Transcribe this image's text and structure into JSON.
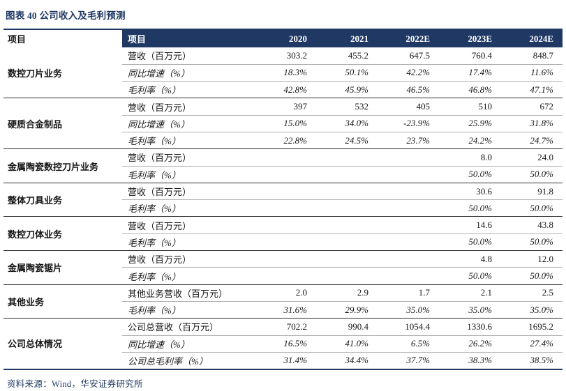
{
  "title": "图表 40 公司收入及毛利预测",
  "source": "资料来源：Wind，华安证券研究所",
  "colors": {
    "navy": "#1f3864",
    "group_rule": "#2e2e2e",
    "inner_rule": "#b0b0b0"
  },
  "chart_data": {
    "type": "table",
    "title": "图表 40 公司收入及毛利预测",
    "columns": [
      "项目",
      "项目",
      "2020",
      "2021",
      "2022E",
      "2023E",
      "2024E"
    ],
    "groups": [
      {
        "name": "数控刀片业务",
        "rows": [
          {
            "label": "营收（百万元）",
            "italic": false,
            "values": [
              "303.2",
              "455.2",
              "647.5",
              "760.4",
              "848.7"
            ]
          },
          {
            "label": "同比增速（%）",
            "italic": true,
            "values": [
              "18.3%",
              "50.1%",
              "42.2%",
              "17.4%",
              "11.6%"
            ]
          },
          {
            "label": "毛利率（%）",
            "italic": true,
            "values": [
              "42.8%",
              "45.9%",
              "46.5%",
              "46.8%",
              "47.1%"
            ]
          }
        ]
      },
      {
        "name": "硬质合金制品",
        "rows": [
          {
            "label": "营收（百万元）",
            "italic": false,
            "values": [
              "397",
              "532",
              "405",
              "510",
              "672"
            ]
          },
          {
            "label": "同比增速（%）",
            "italic": true,
            "values": [
              "15.0%",
              "34.0%",
              "-23.9%",
              "25.9%",
              "31.8%"
            ]
          },
          {
            "label": "毛利率（%）",
            "italic": true,
            "values": [
              "22.8%",
              "24.5%",
              "23.7%",
              "24.2%",
              "24.7%"
            ]
          }
        ]
      },
      {
        "name": "金属陶瓷数控刀片业务",
        "rows": [
          {
            "label": "营收（百万元）",
            "italic": false,
            "values": [
              "",
              "",
              "",
              "8.0",
              "24.0"
            ]
          },
          {
            "label": "毛利率（%）",
            "italic": true,
            "values": [
              "",
              "",
              "",
              "50.0%",
              "50.0%"
            ]
          }
        ]
      },
      {
        "name": "整体刀具业务",
        "rows": [
          {
            "label": "营收（百万元）",
            "italic": false,
            "values": [
              "",
              "",
              "",
              "30.6",
              "91.8"
            ]
          },
          {
            "label": "毛利率（%）",
            "italic": true,
            "values": [
              "",
              "",
              "",
              "50.0%",
              "50.0%"
            ]
          }
        ]
      },
      {
        "name": "数控刀体业务",
        "rows": [
          {
            "label": "营收（百万元）",
            "italic": false,
            "values": [
              "",
              "",
              "",
              "14.6",
              "43.8"
            ]
          },
          {
            "label": "毛利率（%）",
            "italic": true,
            "values": [
              "",
              "",
              "",
              "50.0%",
              "50.0%"
            ]
          }
        ]
      },
      {
        "name": "金属陶瓷锯片",
        "rows": [
          {
            "label": "营收（百万元）",
            "italic": false,
            "values": [
              "",
              "",
              "",
              "4.8",
              "12.0"
            ]
          },
          {
            "label": "毛利率（%）",
            "italic": true,
            "values": [
              "",
              "",
              "",
              "50.0%",
              "50.0%"
            ]
          }
        ]
      },
      {
        "name": "其他业务",
        "rows": [
          {
            "label": "其他业务营收（百万元）",
            "italic": false,
            "values": [
              "2.0",
              "2.9",
              "1.7",
              "2.1",
              "2.5"
            ]
          },
          {
            "label": "毛利率（%）",
            "italic": true,
            "values": [
              "31.6%",
              "29.9%",
              "35.0%",
              "35.0%",
              "35.0%"
            ]
          }
        ]
      },
      {
        "name": "公司总体情况",
        "rows": [
          {
            "label": "公司总营收（百万元）",
            "italic": false,
            "values": [
              "702.2",
              "990.4",
              "1054.4",
              "1330.6",
              "1695.2"
            ]
          },
          {
            "label": "同比增速（%）",
            "italic": true,
            "values": [
              "16.5%",
              "41.0%",
              "6.5%",
              "26.2%",
              "27.4%"
            ]
          },
          {
            "label": "公司总毛利率（%）",
            "italic": true,
            "values": [
              "31.4%",
              "34.4%",
              "37.7%",
              "38.3%",
              "38.5%"
            ]
          }
        ]
      }
    ]
  }
}
